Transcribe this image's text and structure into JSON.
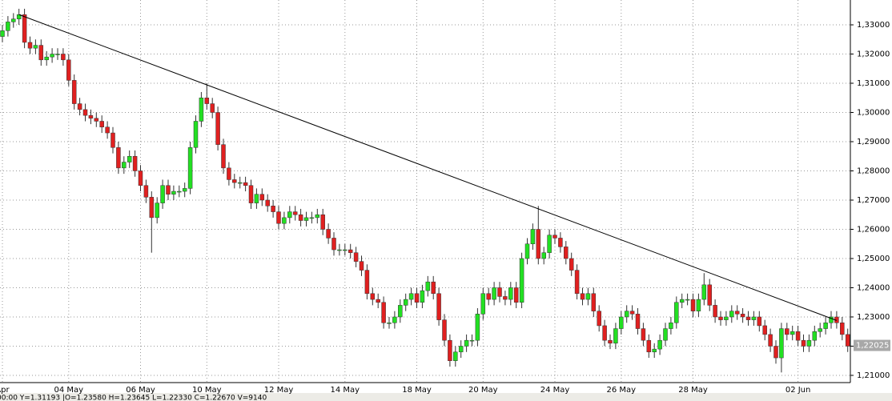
{
  "chart_data": {
    "type": "candlestick",
    "categories": [
      "Apr",
      null,
      null,
      null,
      null,
      null,
      null,
      null,
      null,
      null,
      null,
      null,
      "04 May",
      null,
      null,
      null,
      null,
      null,
      null,
      null,
      null,
      null,
      null,
      null,
      null,
      "06 May",
      null,
      null,
      null,
      null,
      null,
      null,
      null,
      null,
      null,
      null,
      null,
      "10 May",
      null,
      null,
      null,
      null,
      null,
      null,
      null,
      null,
      null,
      null,
      null,
      null,
      "12 May",
      null,
      null,
      null,
      null,
      null,
      null,
      null,
      null,
      null,
      null,
      null,
      "14 May",
      null,
      null,
      null,
      null,
      null,
      null,
      null,
      null,
      null,
      null,
      null,
      null,
      "18 May",
      null,
      null,
      null,
      null,
      null,
      null,
      null,
      null,
      null,
      null,
      null,
      "20 May",
      null,
      null,
      null,
      null,
      null,
      null,
      null,
      null,
      null,
      null,
      null,
      null,
      "24 May",
      null,
      null,
      null,
      null,
      null,
      null,
      null,
      null,
      null,
      null,
      null,
      "26 May",
      null,
      null,
      null,
      null,
      null,
      null,
      null,
      null,
      null,
      null,
      null,
      null,
      "28 May",
      null,
      null,
      null,
      null,
      null,
      null,
      null,
      null,
      null,
      null,
      null,
      null,
      null,
      null,
      null,
      null,
      null,
      null,
      "02 Jun",
      null,
      null,
      null,
      null,
      null,
      null,
      null,
      null,
      null
    ],
    "open": [
      1.326,
      1.328,
      1.331,
      1.332,
      1.3335,
      1.324,
      1.322,
      1.323,
      1.318,
      1.319,
      1.32,
      1.32,
      1.318,
      1.311,
      1.303,
      1.301,
      1.299,
      1.298,
      1.297,
      1.295,
      1.293,
      1.288,
      1.281,
      1.283,
      1.285,
      1.28,
      1.275,
      1.271,
      1.264,
      1.269,
      1.275,
      1.272,
      1.273,
      1.273,
      1.274,
      1.288,
      1.297,
      1.305,
      1.303,
      1.3,
      1.289,
      1.281,
      1.277,
      1.276,
      1.276,
      1.275,
      1.269,
      1.272,
      1.27,
      1.268,
      1.266,
      1.262,
      1.264,
      1.266,
      1.265,
      1.263,
      1.264,
      1.264,
      1.265,
      1.26,
      1.257,
      1.253,
      1.253,
      1.253,
      1.252,
      1.249,
      1.246,
      1.238,
      1.236,
      1.235,
      1.228,
      1.228,
      1.23,
      1.234,
      1.236,
      1.238,
      1.235,
      1.239,
      1.242,
      1.238,
      1.229,
      1.222,
      1.215,
      1.218,
      1.22,
      1.222,
      1.222,
      1.231,
      1.238,
      1.236,
      1.24,
      1.237,
      1.236,
      1.24,
      1.235,
      1.25,
      1.255,
      1.26,
      1.25,
      1.252,
      1.258,
      1.257,
      1.254,
      1.25,
      1.246,
      1.238,
      1.236,
      1.238,
      1.232,
      1.227,
      1.222,
      1.221,
      1.226,
      1.23,
      1.232,
      1.231,
      1.226,
      1.222,
      1.218,
      1.219,
      1.222,
      1.226,
      1.228,
      1.235,
      1.236,
      1.236,
      1.232,
      1.236,
      1.241,
      1.234,
      1.23,
      1.229,
      1.23,
      1.232,
      1.231,
      1.23,
      1.229,
      1.23,
      1.227,
      1.224,
      1.22,
      1.216,
      1.226,
      1.224,
      1.225,
      1.222,
      1.22,
      1.222,
      1.225,
      1.226,
      1.228,
      1.23,
      1.228,
      1.224
    ],
    "high": [
      1.33,
      1.333,
      1.334,
      1.3355,
      1.3355,
      1.326,
      1.325,
      1.325,
      1.321,
      1.322,
      1.322,
      1.322,
      1.32,
      1.313,
      1.305,
      1.303,
      1.301,
      1.3,
      1.299,
      1.297,
      1.295,
      1.29,
      1.285,
      1.287,
      1.287,
      1.282,
      1.277,
      1.273,
      1.271,
      1.277,
      1.277,
      1.275,
      1.275,
      1.276,
      1.29,
      1.299,
      1.307,
      1.31,
      1.305,
      1.302,
      1.291,
      1.283,
      1.279,
      1.278,
      1.278,
      1.277,
      1.274,
      1.274,
      1.272,
      1.27,
      1.268,
      1.266,
      1.268,
      1.268,
      1.267,
      1.266,
      1.266,
      1.267,
      1.267,
      1.262,
      1.259,
      1.255,
      1.255,
      1.255,
      1.254,
      1.251,
      1.248,
      1.24,
      1.238,
      1.237,
      1.23,
      1.232,
      1.236,
      1.238,
      1.24,
      1.24,
      1.241,
      1.244,
      1.244,
      1.24,
      1.231,
      1.224,
      1.22,
      1.222,
      1.224,
      1.224,
      1.233,
      1.24,
      1.24,
      1.242,
      1.242,
      1.239,
      1.242,
      1.242,
      1.252,
      1.257,
      1.262,
      1.268,
      1.254,
      1.26,
      1.26,
      1.259,
      1.256,
      1.252,
      1.248,
      1.24,
      1.24,
      1.24,
      1.234,
      1.229,
      1.224,
      1.228,
      1.232,
      1.234,
      1.234,
      1.233,
      1.228,
      1.224,
      1.221,
      1.224,
      1.228,
      1.23,
      1.237,
      1.238,
      1.238,
      1.238,
      1.238,
      1.245,
      1.243,
      1.236,
      1.232,
      1.232,
      1.234,
      1.234,
      1.233,
      1.232,
      1.232,
      1.232,
      1.229,
      1.226,
      1.222,
      1.228,
      1.228,
      1.227,
      1.227,
      1.224,
      1.224,
      1.227,
      1.228,
      1.23,
      1.232,
      1.232,
      1.23,
      1.226
    ],
    "low": [
      1.324,
      1.326,
      1.329,
      1.33,
      1.322,
      1.32,
      1.32,
      1.316,
      1.316,
      1.317,
      1.318,
      1.316,
      1.309,
      1.301,
      1.299,
      1.297,
      1.296,
      1.295,
      1.293,
      1.291,
      1.286,
      1.279,
      1.279,
      1.281,
      1.278,
      1.273,
      1.269,
      1.252,
      1.262,
      1.267,
      1.27,
      1.27,
      1.271,
      1.271,
      1.272,
      1.286,
      1.295,
      1.301,
      1.298,
      1.287,
      1.279,
      1.275,
      1.274,
      1.274,
      1.273,
      1.267,
      1.267,
      1.268,
      1.266,
      1.264,
      1.26,
      1.26,
      1.262,
      1.263,
      1.261,
      1.261,
      1.262,
      1.262,
      1.258,
      1.255,
      1.251,
      1.251,
      1.251,
      1.25,
      1.247,
      1.244,
      1.236,
      1.234,
      1.233,
      1.226,
      1.226,
      1.226,
      1.228,
      1.232,
      1.234,
      1.233,
      1.233,
      1.237,
      1.236,
      1.227,
      1.22,
      1.213,
      1.213,
      1.216,
      1.218,
      1.22,
      1.22,
      1.229,
      1.234,
      1.234,
      1.235,
      1.234,
      1.234,
      1.233,
      1.233,
      1.248,
      1.253,
      1.248,
      1.248,
      1.25,
      1.255,
      1.252,
      1.248,
      1.244,
      1.236,
      1.234,
      1.234,
      1.23,
      1.225,
      1.22,
      1.219,
      1.219,
      1.224,
      1.228,
      1.229,
      1.224,
      1.22,
      1.216,
      1.216,
      1.217,
      1.22,
      1.224,
      1.226,
      1.233,
      1.234,
      1.23,
      1.23,
      1.234,
      1.232,
      1.228,
      1.227,
      1.227,
      1.228,
      1.229,
      1.228,
      1.227,
      1.227,
      1.225,
      1.222,
      1.218,
      1.214,
      1.211,
      1.222,
      1.222,
      1.22,
      1.218,
      1.218,
      1.22,
      1.223,
      1.224,
      1.226,
      1.226,
      1.222,
      1.218
    ],
    "close": [
      1.328,
      1.331,
      1.332,
      1.3335,
      1.324,
      1.322,
      1.323,
      1.318,
      1.319,
      1.32,
      1.32,
      1.318,
      1.311,
      1.303,
      1.301,
      1.299,
      1.298,
      1.297,
      1.295,
      1.293,
      1.288,
      1.281,
      1.283,
      1.285,
      1.28,
      1.275,
      1.271,
      1.264,
      1.269,
      1.275,
      1.272,
      1.273,
      1.273,
      1.274,
      1.288,
      1.297,
      1.305,
      1.303,
      1.3,
      1.289,
      1.281,
      1.277,
      1.276,
      1.276,
      1.275,
      1.269,
      1.272,
      1.27,
      1.268,
      1.266,
      1.262,
      1.264,
      1.266,
      1.265,
      1.263,
      1.264,
      1.264,
      1.265,
      1.26,
      1.257,
      1.253,
      1.253,
      1.253,
      1.252,
      1.249,
      1.246,
      1.238,
      1.236,
      1.235,
      1.228,
      1.228,
      1.23,
      1.234,
      1.236,
      1.238,
      1.235,
      1.239,
      1.242,
      1.238,
      1.229,
      1.222,
      1.215,
      1.218,
      1.22,
      1.222,
      1.222,
      1.231,
      1.238,
      1.236,
      1.24,
      1.237,
      1.236,
      1.24,
      1.235,
      1.25,
      1.255,
      1.26,
      1.25,
      1.252,
      1.258,
      1.257,
      1.254,
      1.25,
      1.246,
      1.238,
      1.236,
      1.238,
      1.232,
      1.227,
      1.222,
      1.221,
      1.226,
      1.23,
      1.232,
      1.231,
      1.226,
      1.222,
      1.218,
      1.219,
      1.222,
      1.226,
      1.228,
      1.235,
      1.236,
      1.236,
      1.232,
      1.236,
      1.241,
      1.234,
      1.23,
      1.229,
      1.23,
      1.232,
      1.231,
      1.23,
      1.229,
      1.23,
      1.227,
      1.224,
      1.22,
      1.216,
      1.226,
      1.224,
      1.225,
      1.222,
      1.22,
      1.222,
      1.225,
      1.226,
      1.228,
      1.23,
      1.228,
      1.224,
      1.22
    ],
    "up_color": "#22e022",
    "down_color": "#e02020",
    "trendline": {
      "x": [
        3,
        151
      ],
      "y": [
        1.3335,
        1.2288
      ]
    },
    "last_price": {
      "value": 1.22025,
      "label": "1,22025"
    },
    "ylim": [
      1.2078,
      1.3385
    ],
    "yticks": [
      {
        "value": 1.21,
        "label": "1,21000"
      },
      {
        "value": 1.22,
        "label": "1,22000"
      },
      {
        "value": 1.23,
        "label": "1,23000"
      },
      {
        "value": 1.24,
        "label": "1,24000"
      },
      {
        "value": 1.25,
        "label": "1,25000"
      },
      {
        "value": 1.26,
        "label": "1,26000"
      },
      {
        "value": 1.27,
        "label": "1,27000"
      },
      {
        "value": 1.28,
        "label": "1,28000"
      },
      {
        "value": 1.29,
        "label": "1,29000"
      },
      {
        "value": 1.3,
        "label": "1,30000"
      },
      {
        "value": 1.31,
        "label": "1,31000"
      },
      {
        "value": 1.32,
        "label": "1,32000"
      },
      {
        "value": 1.33,
        "label": "1,33000"
      }
    ],
    "grid": true,
    "status": "00:00  Y=1.31193 |O=1.23580 H=1.23645 L=1.22330 C=1.22670 V=9140"
  }
}
